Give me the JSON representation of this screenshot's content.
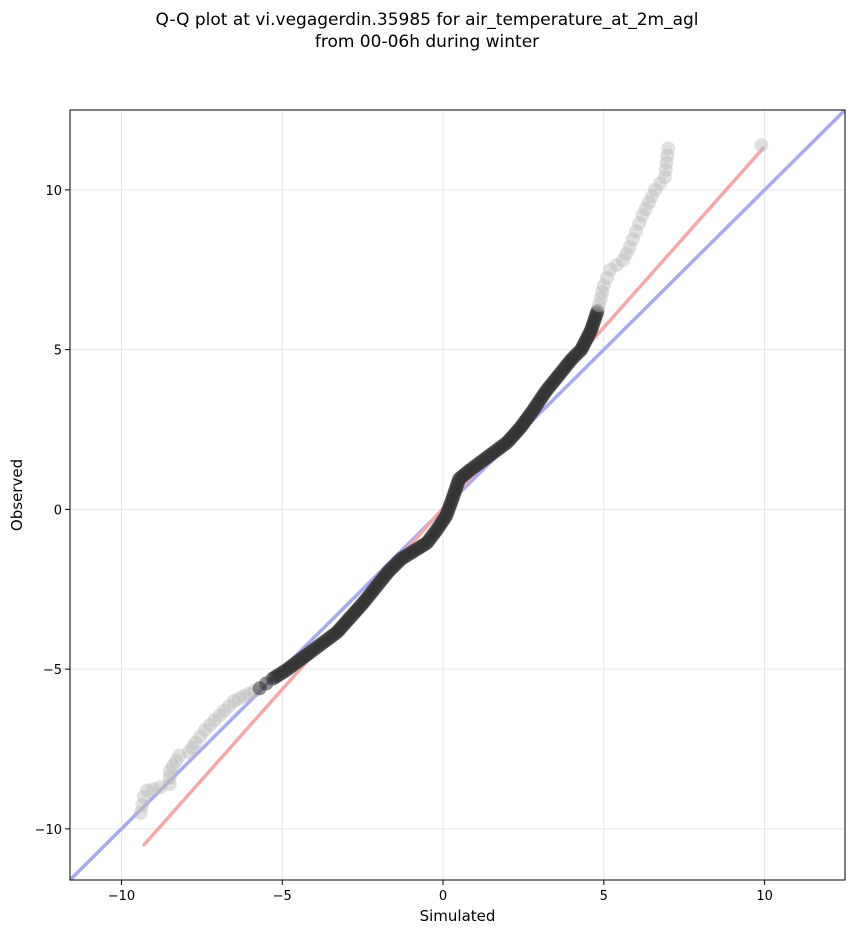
{
  "chart_data": {
    "type": "scatter",
    "title_line1": "Q-Q plot at vi.vegagerdin.35985 for air_temperature_at_2m_agl",
    "title_line2": "from 00-06h during winter",
    "xlabel": "Simulated",
    "ylabel": "Observed",
    "xlim": [
      -11.6,
      12.5
    ],
    "ylim": [
      -11.6,
      12.5
    ],
    "xticks": [
      -10,
      -5,
      0,
      5,
      10
    ],
    "yticks": [
      -10,
      -5,
      0,
      5,
      10
    ],
    "xtick_labels": [
      "−10",
      "−5",
      "0",
      "5",
      "10"
    ],
    "ytick_labels": [
      "−10",
      "−5",
      "0",
      "5",
      "10"
    ],
    "grid": true,
    "reference_line": {
      "slope": 1,
      "intercept": 0,
      "color": "#aaaaf0"
    },
    "fit_line": {
      "x": [
        -9.3,
        9.95
      ],
      "y": [
        -10.5,
        11.3
      ],
      "color": "#f5a8a8"
    },
    "points_color": "#333333",
    "tail_points_color": "#bbbbbb",
    "quantile_curve": [
      [
        -9.4,
        -9.5
      ],
      [
        -9.3,
        -9.0
      ],
      [
        -9.2,
        -8.8
      ],
      [
        -8.8,
        -8.7
      ],
      [
        -8.5,
        -8.6
      ],
      [
        -8.5,
        -8.2
      ],
      [
        -8.2,
        -7.7
      ],
      [
        -7.9,
        -7.6
      ],
      [
        -7.7,
        -7.3
      ],
      [
        -7.4,
        -6.9
      ],
      [
        -7.1,
        -6.6
      ],
      [
        -6.8,
        -6.3
      ],
      [
        -6.5,
        -6.0
      ],
      [
        -6.2,
        -5.85
      ],
      [
        -5.7,
        -5.6
      ],
      [
        -5.3,
        -5.3
      ],
      [
        -4.9,
        -5.05
      ],
      [
        -4.5,
        -4.75
      ],
      [
        -4.1,
        -4.45
      ],
      [
        -3.7,
        -4.15
      ],
      [
        -3.3,
        -3.85
      ],
      [
        -2.9,
        -3.4
      ],
      [
        -2.5,
        -2.95
      ],
      [
        -2.1,
        -2.45
      ],
      [
        -1.7,
        -1.95
      ],
      [
        -1.3,
        -1.55
      ],
      [
        -0.9,
        -1.3
      ],
      [
        -0.5,
        -1.05
      ],
      [
        -0.2,
        -0.65
      ],
      [
        0.1,
        -0.2
      ],
      [
        0.3,
        0.35
      ],
      [
        0.5,
        0.95
      ],
      [
        0.8,
        1.2
      ],
      [
        1.2,
        1.5
      ],
      [
        1.6,
        1.8
      ],
      [
        2.0,
        2.1
      ],
      [
        2.4,
        2.55
      ],
      [
        2.8,
        3.1
      ],
      [
        3.2,
        3.7
      ],
      [
        3.6,
        4.2
      ],
      [
        4.0,
        4.7
      ],
      [
        4.3,
        5.0
      ],
      [
        4.6,
        5.6
      ],
      [
        4.8,
        6.2
      ],
      [
        5.0,
        7.0
      ],
      [
        5.2,
        7.5
      ],
      [
        5.6,
        7.8
      ],
      [
        5.8,
        8.2
      ],
      [
        6.0,
        8.7
      ],
      [
        6.2,
        9.2
      ],
      [
        6.4,
        9.6
      ],
      [
        6.6,
        10.0
      ],
      [
        6.9,
        10.4
      ],
      [
        7.0,
        11.3
      ],
      [
        9.9,
        11.4
      ]
    ]
  }
}
